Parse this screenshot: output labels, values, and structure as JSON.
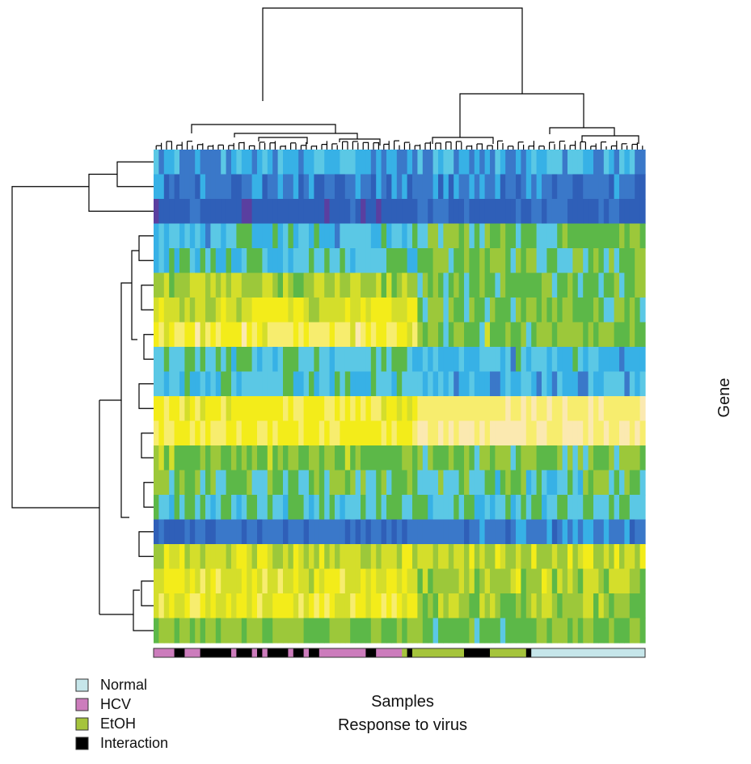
{
  "chart_data": {
    "type": "heatmap",
    "title": "",
    "xlabel": "Samples",
    "xlabel2": "Response to virus",
    "ylabel": "Gene",
    "n_rows": 20,
    "n_cols": 95,
    "colorscale": [
      "#5a3fa0",
      "#2f5fb8",
      "#3a78c9",
      "#37b1e6",
      "#5bc8e5",
      "#5cb848",
      "#9cc83a",
      "#d4de2b",
      "#f3ec1a",
      "#f7ed6e",
      "#fbe9b0"
    ],
    "value_range": [
      0,
      10
    ],
    "row_patterns": [
      {
        "base": 3,
        "contrast": 3,
        "var": 1.0,
        "seed": 11
      },
      {
        "base": 2,
        "contrast": 2,
        "var": 0.9,
        "seed": 12
      },
      {
        "base": 1,
        "contrast": 1.3,
        "var": 0.6,
        "seed": 13
      },
      {
        "base": 3.6,
        "contrast": 5,
        "var": 1.0,
        "seed": 14
      },
      {
        "base": 4,
        "contrast": 5,
        "var": 1.0,
        "seed": 15
      },
      {
        "base": 6.3,
        "contrast": 5.2,
        "var": 0.9,
        "seed": 16
      },
      {
        "base": 7.2,
        "contrast": 5.2,
        "var": 1.0,
        "seed": 17
      },
      {
        "base": 8.4,
        "contrast": 5.4,
        "var": 1.0,
        "seed": 18
      },
      {
        "base": 4.2,
        "contrast": 3.5,
        "var": 0.9,
        "seed": 19
      },
      {
        "base": 3.8,
        "contrast": 3.3,
        "var": 0.9,
        "seed": 20
      },
      {
        "base": 8.1,
        "contrast": 9.3,
        "var": 0.6,
        "seed": 21
      },
      {
        "base": 8.4,
        "contrast": 9.6,
        "var": 0.6,
        "seed": 22
      },
      {
        "base": 5.6,
        "contrast": 5.2,
        "var": 0.9,
        "seed": 23
      },
      {
        "base": 5.0,
        "contrast": 4.6,
        "var": 1.1,
        "seed": 24
      },
      {
        "base": 4.2,
        "contrast": 4.2,
        "var": 1.0,
        "seed": 25
      },
      {
        "base": 1.8,
        "contrast": 2.1,
        "var": 0.6,
        "seed": 26
      },
      {
        "base": 7.0,
        "contrast": 6.8,
        "var": 0.9,
        "seed": 27
      },
      {
        "base": 7.6,
        "contrast": 6.5,
        "var": 1.0,
        "seed": 28
      },
      {
        "base": 7.8,
        "contrast": 6.0,
        "var": 1.0,
        "seed": 29
      },
      {
        "base": 5.6,
        "contrast": 5.2,
        "var": 0.6,
        "seed": 30
      }
    ],
    "sample_groups": [
      {
        "label": "HCV",
        "count": 4
      },
      {
        "label": "Interaction",
        "count": 2
      },
      {
        "label": "HCV",
        "count": 3
      },
      {
        "label": "Interaction",
        "count": 6
      },
      {
        "label": "HCV",
        "count": 1
      },
      {
        "label": "Interaction",
        "count": 3
      },
      {
        "label": "HCV",
        "count": 1
      },
      {
        "label": "Interaction",
        "count": 1
      },
      {
        "label": "HCV",
        "count": 1
      },
      {
        "label": "Interaction",
        "count": 4
      },
      {
        "label": "HCV",
        "count": 1
      },
      {
        "label": "Interaction",
        "count": 2
      },
      {
        "label": "HCV",
        "count": 1
      },
      {
        "label": "Interaction",
        "count": 2
      },
      {
        "label": "HCV",
        "count": 9
      },
      {
        "label": "Interaction",
        "count": 2
      },
      {
        "label": "HCV",
        "count": 5
      },
      {
        "label": "EtOH",
        "count": 1
      },
      {
        "label": "Interaction",
        "count": 1
      },
      {
        "label": "EtOH",
        "count": 2
      },
      {
        "label": "EtOH",
        "count": 8
      },
      {
        "label": "Interaction",
        "count": 5
      },
      {
        "label": "EtOH",
        "count": 7
      },
      {
        "label": "Interaction",
        "count": 1
      },
      {
        "label": "Normal",
        "count": 22
      }
    ],
    "legend": [
      {
        "label": "Normal",
        "color": "#c6e6ea"
      },
      {
        "label": "HCV",
        "color": "#cc7cbc"
      },
      {
        "label": "EtOH",
        "color": "#a5c43c"
      },
      {
        "label": "Interaction",
        "color": "#000000"
      }
    ],
    "legend_placement": "bottom-left"
  }
}
